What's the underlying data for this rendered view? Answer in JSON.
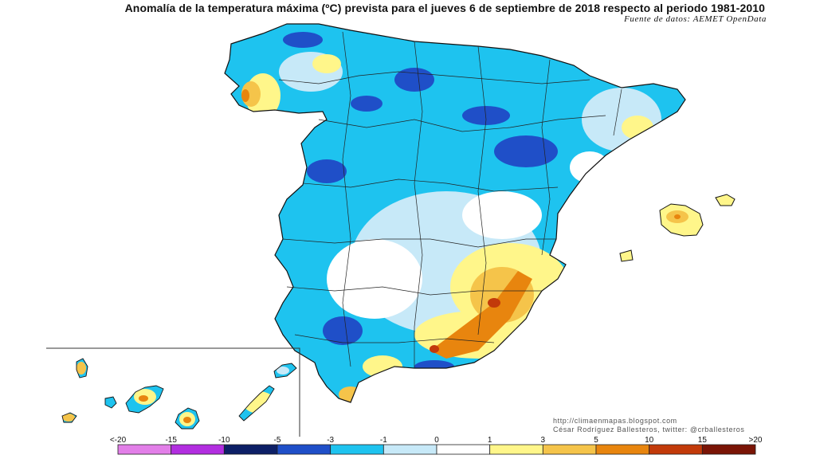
{
  "title": "Anomalía de la temperatura máxima (ºC) prevista para el jueves 6 de septiembre de 2018 respecto al periodo 1981-2010",
  "source": "Fuente de datos: AEMET OpenData",
  "credits": {
    "url": "http://climaenmapas.blogspot.com",
    "author": "César Rodríguez Ballesteros, twitter: @crballesteros"
  },
  "legend": {
    "tick_labels": [
      "<-20",
      "-15",
      "-10",
      "-5",
      "-3",
      "-1",
      "0",
      "1",
      "3",
      "5",
      "10",
      "15",
      ">20"
    ],
    "colors": [
      "#e27fe8",
      "#b22ee0",
      "#0d1f66",
      "#1f4fc8",
      "#1ec3ef",
      "#c7e9f8",
      "#ffffff",
      "#fff68a",
      "#f5c44a",
      "#e8850e",
      "#c23a0a",
      "#7a1406"
    ]
  },
  "map": {
    "regions": [
      "Península Ibérica",
      "Islas Baleares",
      "Islas Canarias"
    ]
  }
}
